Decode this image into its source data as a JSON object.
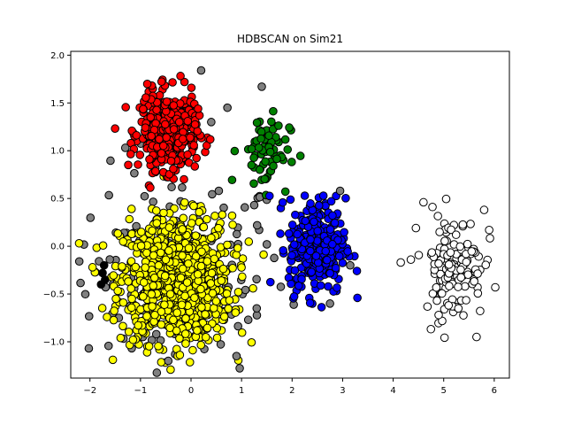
{
  "chart_data": {
    "type": "scatter",
    "title": "HDBSCAN on Sim21",
    "xlabel": "",
    "ylabel": "",
    "xlim": [
      -2.38,
      6.3
    ],
    "ylim": [
      -1.38,
      2.04
    ],
    "xticks": [
      -2,
      -1,
      0,
      1,
      2,
      3,
      4,
      5,
      6
    ],
    "yticks": [
      -1.0,
      -0.5,
      0.0,
      0.5,
      1.0,
      1.5,
      2.0
    ],
    "ytick_labels": [
      "-1.0",
      "-0.5",
      "0.0",
      "0.5",
      "1.0",
      "1.5",
      "2.0"
    ],
    "grid": false,
    "legend": "none",
    "marker_edge_color": "#000000",
    "clusters": [
      {
        "color": "#808080",
        "center": [
          -0.3,
          -0.3
        ],
        "spread": [
          1.1,
          0.55
        ],
        "count": 130
      },
      {
        "color": "#ffff00",
        "center": [
          -0.3,
          -0.35
        ],
        "spread": [
          0.55,
          0.33
        ],
        "count": 900
      },
      {
        "color": "#ff0000",
        "center": [
          -0.45,
          1.2
        ],
        "spread": [
          0.28,
          0.2
        ],
        "count": 420
      },
      {
        "color": "#008000",
        "center": [
          1.45,
          1.0
        ],
        "spread": [
          0.25,
          0.2
        ],
        "count": 70
      },
      {
        "color": "#0000ff",
        "center": [
          2.5,
          0.0
        ],
        "spread": [
          0.28,
          0.25
        ],
        "count": 300
      },
      {
        "color": "#ffffff",
        "center": [
          5.2,
          -0.2
        ],
        "spread": [
          0.3,
          0.28
        ],
        "count": 130
      }
    ],
    "extra_points": [
      {
        "color": "#000000",
        "x": -1.75,
        "y": -0.28
      },
      {
        "color": "#000000",
        "x": -1.72,
        "y": -0.2
      },
      {
        "color": "#000000",
        "x": -1.7,
        "y": -0.35
      },
      {
        "color": "#000000",
        "x": -1.78,
        "y": -0.4
      },
      {
        "color": "#ffffff",
        "x": 4.15,
        "y": -0.17
      },
      {
        "color": "#ffffff",
        "x": 4.35,
        "y": -0.14
      },
      {
        "color": "#ffffff",
        "x": 4.45,
        "y": 0.19
      },
      {
        "color": "#ffffff",
        "x": 4.6,
        "y": 0.46
      },
      {
        "color": "#ffffff",
        "x": 5.65,
        "y": -0.95
      },
      {
        "color": "#ffffff",
        "x": 5.9,
        "y": 0.17
      },
      {
        "color": "#ffffff",
        "x": 5.8,
        "y": 0.38
      },
      {
        "color": "#ffffff",
        "x": 4.9,
        "y": -0.72
      },
      {
        "color": "#808080",
        "x": 1.4,
        "y": 1.67
      },
      {
        "color": "#808080",
        "x": 0.2,
        "y": 1.84
      },
      {
        "color": "#808080",
        "x": 0.72,
        "y": 1.45
      },
      {
        "color": "#808080",
        "x": 0.4,
        "y": 1.3
      },
      {
        "color": "#808080",
        "x": 1.5,
        "y": 0.02
      },
      {
        "color": "#808080",
        "x": 1.3,
        "y": -0.65
      },
      {
        "color": "#808080",
        "x": 0.9,
        "y": -1.15
      },
      {
        "color": "#808080",
        "x": -1.3,
        "y": 1.03
      },
      {
        "color": "#808080",
        "x": 2.95,
        "y": 0.58
      },
      {
        "color": "#808080",
        "x": 3.15,
        "y": -0.2
      },
      {
        "color": "#808080",
        "x": 2.75,
        "y": -0.6
      },
      {
        "color": "#808080",
        "x": 0.55,
        "y": 0.58
      },
      {
        "color": "#808080",
        "x": -0.45,
        "y": -1.2
      },
      {
        "color": "#808080",
        "x": 1.25,
        "y": 0.43
      }
    ]
  }
}
